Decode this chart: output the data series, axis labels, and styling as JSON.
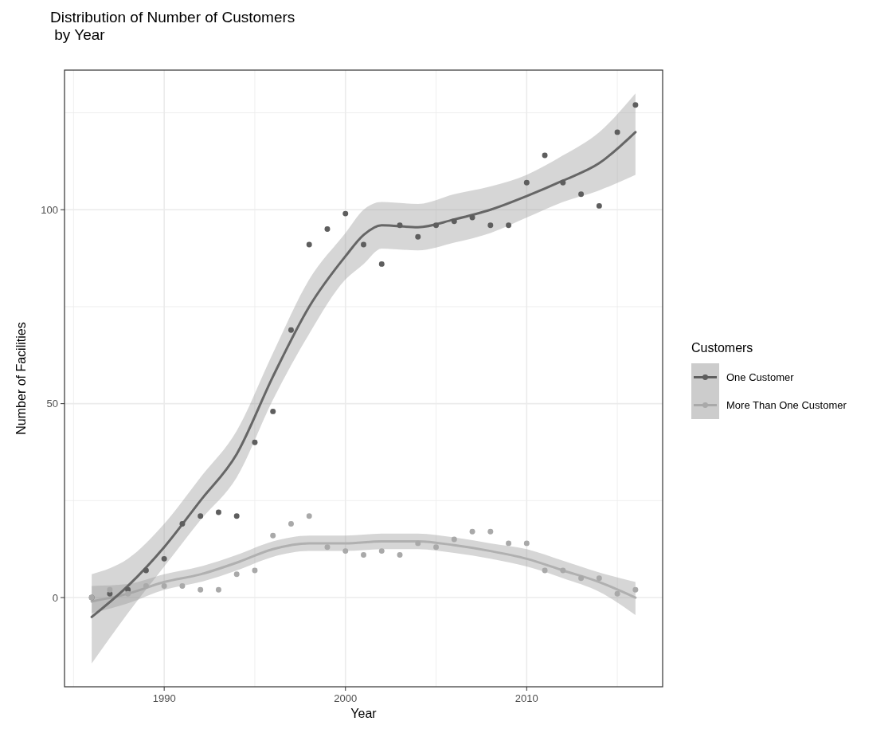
{
  "chart_data": {
    "type": "scatter",
    "title": "Distribution of Number of Customers\n by Year",
    "xlabel": "Year",
    "ylabel": "Number of Facilities",
    "legend_title": "Customers",
    "legend": "right",
    "grid": true,
    "marker": "circle",
    "xlim": [
      1984.5,
      2017.5
    ],
    "ylim": [
      -23,
      136
    ],
    "xticks": [
      {
        "value": 1985,
        "label": null
      },
      1990,
      {
        "value": 1995,
        "label": null
      },
      2000,
      {
        "value": 2005,
        "label": null
      },
      2010,
      {
        "value": 2015,
        "label": null
      }
    ],
    "yticks": [
      0,
      {
        "value": 25,
        "label": null
      },
      50,
      {
        "value": 75,
        "label": null
      },
      100,
      {
        "value": 125,
        "label": null
      }
    ],
    "x": [
      1986,
      1987,
      1988,
      1989,
      1990,
      1991,
      1992,
      1993,
      1994,
      1995,
      1996,
      1997,
      1998,
      1999,
      2000,
      2001,
      2002,
      2003,
      2004,
      2005,
      2006,
      2007,
      2008,
      2009,
      2010,
      2011,
      2012,
      2013,
      2014,
      2015,
      2016
    ],
    "series": [
      {
        "type": "line",
        "marker": "none",
        "color": "#b0b0b0",
        "x": [
          1986,
          1988,
          1990,
          1992,
          1994,
          1996,
          1998,
          2000,
          2002,
          2004,
          2006,
          2008,
          2010,
          2012,
          2014,
          2016
        ],
        "values": [
          -1,
          1,
          4,
          6,
          9,
          12.5,
          14,
          14,
          14.5,
          14.5,
          13.5,
          12,
          10,
          7,
          4,
          0
        ],
        "lower": [
          -4,
          -1.5,
          2,
          4,
          7,
          10.5,
          12,
          12,
          12.5,
          12.5,
          11.5,
          10,
          8,
          5,
          1.5,
          -4.5
        ],
        "upper": [
          3,
          3.5,
          6,
          8,
          11,
          14.5,
          16,
          16,
          16.5,
          16.5,
          15.5,
          14,
          12.5,
          9.5,
          6.5,
          4
        ]
      },
      {
        "type": "line",
        "marker": "none",
        "color": "#666666",
        "x": [
          1986,
          1988,
          1990,
          1992,
          1994,
          1996,
          1998,
          2000,
          2001,
          2002,
          2004,
          2006,
          2008,
          2010,
          2012,
          2014,
          2016
        ],
        "values": [
          -5,
          3,
          13,
          25,
          37,
          57,
          75,
          88,
          93.5,
          96,
          95.5,
          97.5,
          100,
          103.5,
          107.5,
          112,
          120
        ],
        "lower": [
          -17,
          -4,
          8,
          20,
          31,
          51,
          68,
          82,
          86,
          90,
          89.5,
          91.5,
          94,
          98,
          102,
          105,
          109
        ],
        "upper": [
          6,
          10,
          19,
          31,
          43,
          63,
          82,
          94,
          100,
          102,
          101.5,
          104,
          106,
          109,
          114,
          120,
          130
        ]
      },
      {
        "name": "One Customer",
        "color": "#5e5e5e",
        "values": [
          0,
          1,
          2,
          7,
          10,
          19,
          21,
          22,
          21,
          40,
          48,
          69,
          91,
          95,
          99,
          91,
          86,
          96,
          93,
          96,
          97,
          98,
          96,
          96,
          107,
          114,
          107,
          104,
          101,
          120,
          127
        ]
      },
      {
        "name": "More Than One Customer",
        "color": "#a9a9a9",
        "values": [
          0,
          2,
          1,
          3,
          3,
          3,
          2,
          2,
          6,
          7,
          16,
          19,
          21,
          13,
          12,
          11,
          12,
          11,
          14,
          13,
          15,
          17,
          17,
          14,
          14,
          7,
          7,
          5,
          5,
          1,
          2
        ]
      }
    ]
  }
}
